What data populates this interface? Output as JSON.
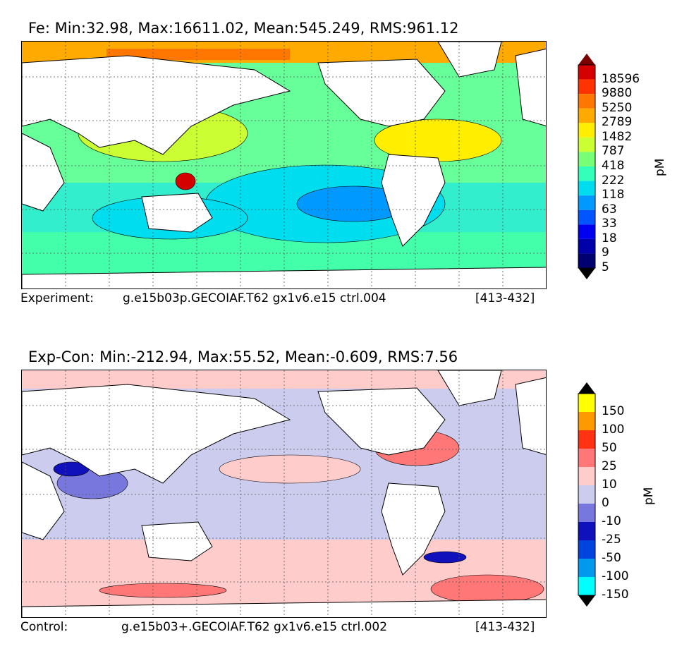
{
  "chart_data": [
    {
      "type": "heatmap",
      "title": "Fe: Min:32.98, Max:16611.02, Mean:545.249, RMS:961.12",
      "footer": {
        "left": "Experiment:",
        "center": "g.e15b03p.GECOIAF.T62 gx1v6.e15 ctrl.004",
        "right": "[413-432]"
      },
      "colorbar": {
        "unit": "pM",
        "levels": [
          "18596",
          "9880",
          "5250",
          "2789",
          "1482",
          "787",
          "418",
          "222",
          "118",
          "63",
          "33",
          "18",
          "9",
          "5"
        ],
        "colors": [
          "#7a0000",
          "#d40000",
          "#ff3300",
          "#ff7700",
          "#ffaa00",
          "#ffee00",
          "#ccff33",
          "#77ff77",
          "#33ffbb",
          "#00ddee",
          "#0099ff",
          "#0055ff",
          "#0000ee",
          "#0000aa",
          "#000070",
          "#000000"
        ]
      },
      "stats": {
        "min": 32.98,
        "max": 16611.02,
        "mean": 545.249,
        "rms": 961.12
      }
    },
    {
      "type": "heatmap",
      "title": "Exp-Con: Min:-212.94, Max:55.52, Mean:-0.609, RMS:7.56",
      "footer": {
        "left": "Control:",
        "center": "g.e15b03+.GECOIAF.T62 gx1v6.e15 ctrl.002",
        "right": "[413-432]"
      },
      "colorbar": {
        "unit": "pM",
        "levels": [
          "150",
          "100",
          "50",
          "25",
          "10",
          "0",
          "-10",
          "-25",
          "-50",
          "-100",
          "-150"
        ],
        "colors": [
          "#000000",
          "#ffff00",
          "#ff9900",
          "#ff3311",
          "#ff7777",
          "#ffcccc",
          "#ccccee",
          "#7777dd",
          "#1111bb",
          "#0044dd",
          "#0099ee",
          "#00ffff",
          "#000000"
        ]
      },
      "stats": {
        "min": -212.94,
        "max": 55.52,
        "mean": -0.609,
        "rms": 7.56
      }
    }
  ]
}
